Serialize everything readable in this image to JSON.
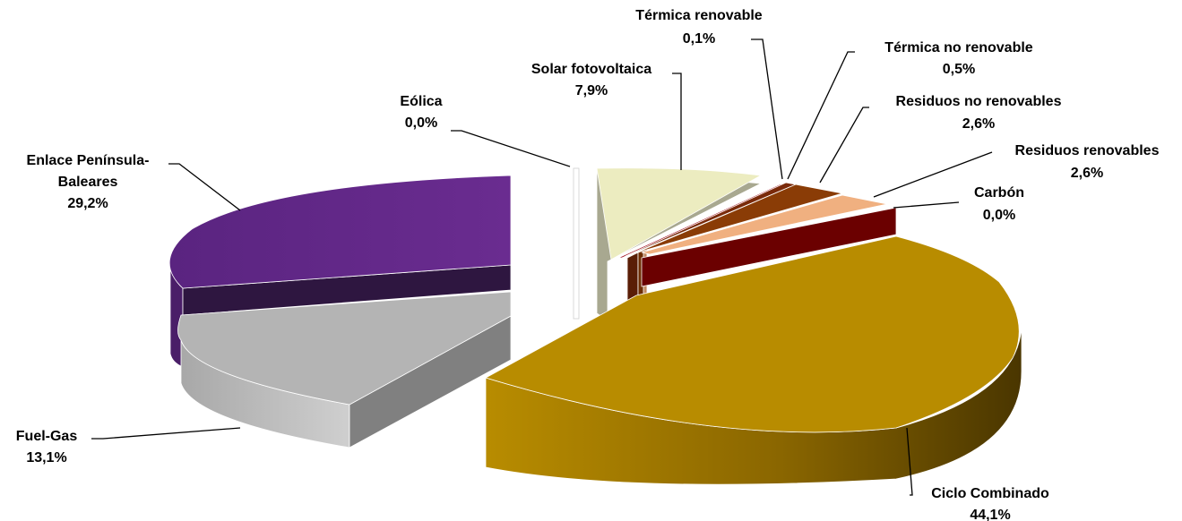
{
  "chart_data": {
    "type": "pie",
    "style": "3d-exploded",
    "title": "",
    "slices": [
      {
        "name": "Ciclo Combinado",
        "value": 44.1,
        "label": "44,1%",
        "color": "#B88C00"
      },
      {
        "name": "Carbón",
        "value": 0.0,
        "label": "0,0%",
        "color": "#6B0000"
      },
      {
        "name": "Residuos renovables",
        "value": 2.6,
        "label": "2,6%",
        "color": "#F0B080"
      },
      {
        "name": "Residuos no renovables",
        "value": 2.6,
        "label": "2,6%",
        "color": "#8A3C06"
      },
      {
        "name": "Térmica no renovable",
        "value": 0.5,
        "label": "0,5%",
        "color": "#7A2A0A"
      },
      {
        "name": "Térmica renovable",
        "value": 0.1,
        "label": "0,1%",
        "color": "#A01020"
      },
      {
        "name": "Solar fotovoltaica",
        "value": 7.9,
        "label": "7,9%",
        "color": "#ECECC0"
      },
      {
        "name": "Eólica",
        "value": 0.0,
        "label": "0,0%",
        "color": "#DDDDDD"
      },
      {
        "name": "Enlace Península-Baleares",
        "value": 29.2,
        "label": "29,2%",
        "color": "#6A2C90"
      },
      {
        "name": "Fuel-Gas",
        "value": 13.1,
        "label": "13,1%",
        "color": "#B4B4B4"
      }
    ],
    "legend": "none"
  }
}
